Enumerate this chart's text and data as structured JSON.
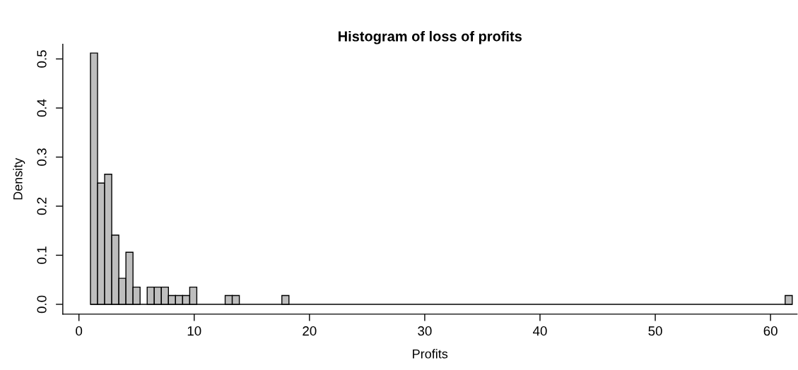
{
  "chart_data": {
    "type": "histogram",
    "title": "Histogram of loss of profits",
    "xlabel": "Profits",
    "ylabel": "Density",
    "color": "#bebebe",
    "bins": [
      1.0,
      1.615,
      2.23,
      2.845,
      3.46,
      4.075,
      4.69,
      5.305,
      5.92,
      6.535,
      7.15,
      7.765,
      8.38,
      8.995,
      9.61,
      10.225,
      10.84,
      11.455,
      12.07,
      12.685,
      13.3,
      13.915,
      14.53,
      15.145,
      15.76,
      16.375,
      16.99,
      17.605,
      18.22,
      18.835,
      19.45,
      20.065,
      20.68,
      21.295,
      21.91,
      22.525,
      23.14,
      23.755,
      24.37,
      24.985,
      25.6,
      26.215,
      26.83,
      27.445,
      28.06,
      28.675,
      29.29,
      29.905,
      30.52,
      31.135,
      31.75,
      32.365,
      32.98,
      33.595,
      34.21,
      34.825,
      35.44,
      36.055,
      36.67,
      37.285,
      37.9,
      38.515,
      39.13,
      39.745,
      40.36,
      40.975,
      41.59,
      42.205,
      42.82,
      43.435,
      44.05,
      44.665,
      45.28,
      45.895,
      46.51,
      47.125,
      47.74,
      48.355,
      48.97,
      49.585,
      50.2,
      50.815,
      51.43,
      52.045,
      52.66,
      53.275,
      53.89,
      54.505,
      55.12,
      55.735,
      56.35,
      56.965,
      57.58,
      58.195,
      58.81,
      59.425,
      60.04,
      60.655,
      61.27,
      61.885
    ],
    "values": [
      0.512,
      0.247,
      0.265,
      0.141,
      0.053,
      0.106,
      0.035,
      0,
      0.035,
      0.035,
      0.035,
      0.018,
      0.018,
      0.018,
      0.035,
      0,
      0,
      0,
      0,
      0.018,
      0.018,
      0,
      0,
      0,
      0,
      0,
      0,
      0.018,
      0,
      0,
      0,
      0,
      0,
      0,
      0,
      0,
      0,
      0,
      0,
      0,
      0,
      0,
      0,
      0,
      0,
      0,
      0,
      0,
      0,
      0,
      0,
      0,
      0,
      0,
      0,
      0,
      0,
      0,
      0,
      0,
      0,
      0,
      0,
      0,
      0,
      0,
      0,
      0,
      0,
      0,
      0,
      0,
      0,
      0,
      0,
      0,
      0,
      0,
      0,
      0,
      0,
      0,
      0,
      0,
      0,
      0,
      0,
      0,
      0,
      0,
      0,
      0,
      0,
      0,
      0,
      0,
      0,
      0,
      0.018
    ],
    "xlim": [
      -1.4,
      62.3
    ],
    "ylim": [
      -0.02,
      0.53
    ],
    "xticks": [
      0,
      10,
      20,
      30,
      40,
      50,
      60
    ],
    "yticks": [
      {
        "value": 0,
        "label": "0.0"
      },
      0.1,
      0.2,
      0.3,
      0.4,
      0.5
    ]
  }
}
